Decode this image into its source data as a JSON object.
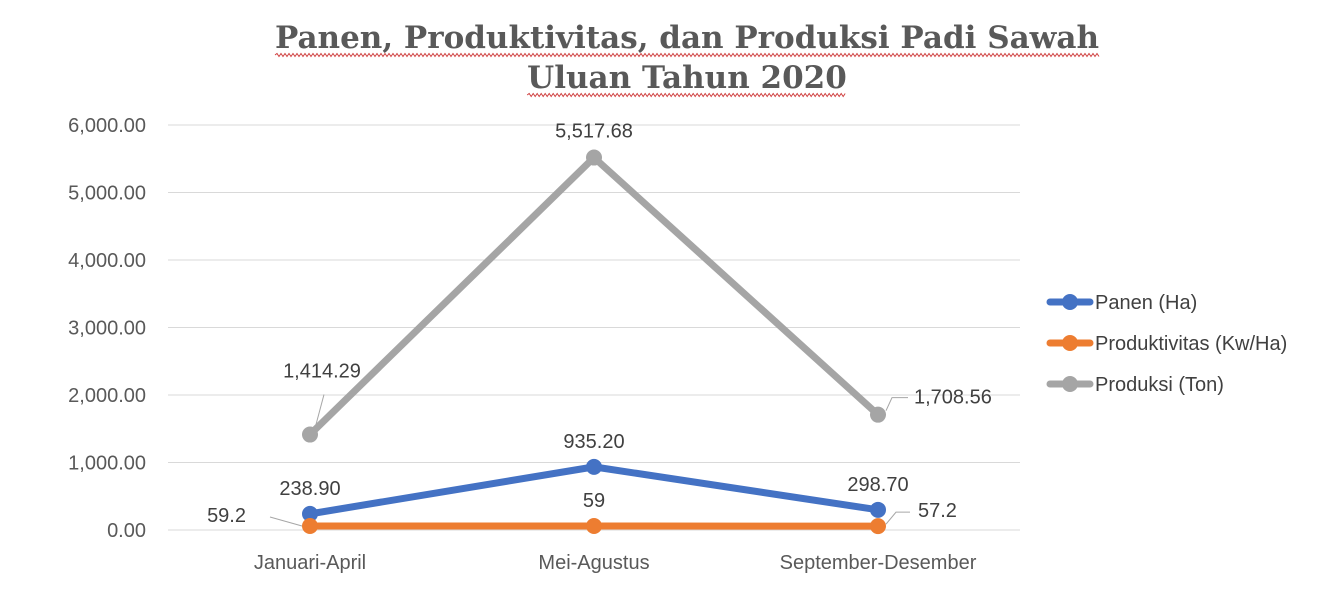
{
  "chart_data": {
    "type": "line",
    "title_lines": [
      "Panen, Produktivitas, dan Produksi Padi Sawah",
      "Uluan Tahun 2020"
    ],
    "categories": [
      "Januari-April",
      "Mei-Agustus",
      "September-Desember"
    ],
    "y_ticks": [
      "0.00",
      "1,000.00",
      "2,000.00",
      "3,000.00",
      "4,000.00",
      "5,000.00",
      "6,000.00"
    ],
    "ylim": [
      0,
      6000
    ],
    "grid": true,
    "legend_position": "right",
    "series": [
      {
        "name": "Panen (Ha)",
        "color": "#4472c4",
        "values": [
          238.9,
          935.2,
          298.7
        ],
        "labels": [
          "238.90",
          "935.20",
          "298.70"
        ]
      },
      {
        "name": "Produktivitas (Kw/Ha)",
        "color": "#ed7d31",
        "values": [
          59.2,
          59,
          57.2
        ],
        "labels": [
          "59.2",
          "59",
          "57.2"
        ]
      },
      {
        "name": "Produksi (Ton)",
        "color": "#a5a5a5",
        "values": [
          1414.29,
          5517.68,
          1708.56
        ],
        "labels": [
          "1,414.29",
          "5,517.68",
          "1,708.56"
        ]
      }
    ]
  }
}
